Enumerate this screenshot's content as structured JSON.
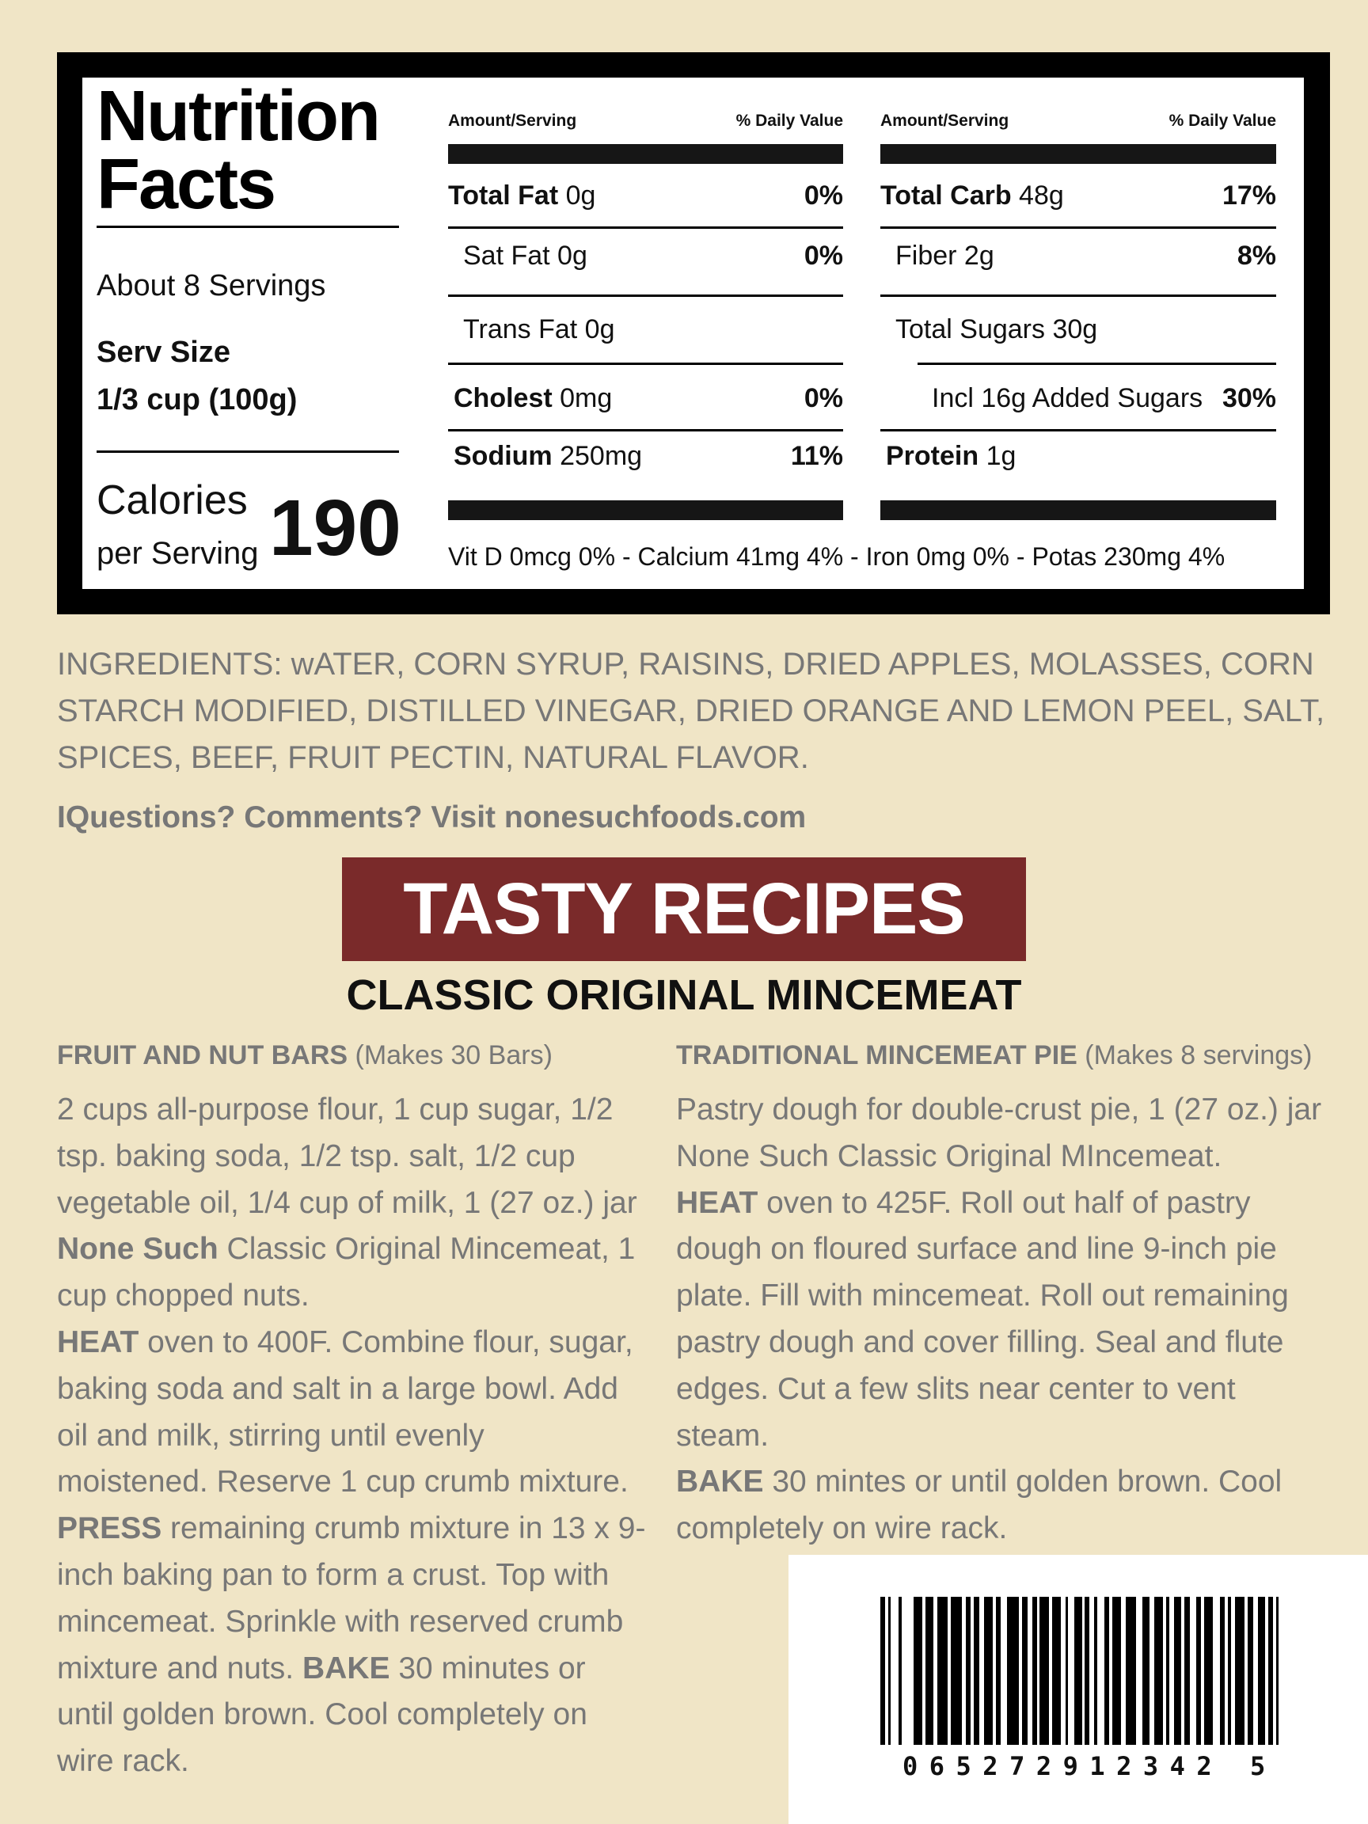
{
  "nutrition": {
    "title_line1": "Nutrition",
    "title_line2": "Facts",
    "servings": "About 8 Servings",
    "serv_size_label": "Serv Size",
    "serv_size_value": "1/3 cup (100g)",
    "calories_label": "Calories",
    "calories_sub": "per Serving",
    "calories_value": "190",
    "col_header_amount": "Amount/Serving",
    "col_header_dv": "% Daily Value",
    "left_rows": [
      {
        "bold": "Total Fat",
        "amount": " 0g",
        "dv": "0%"
      },
      {
        "bold": "",
        "amount": "Sat Fat 0g",
        "dv": "0%"
      },
      {
        "bold": "",
        "amount": "Trans Fat 0g",
        "dv": ""
      },
      {
        "bold": "Cholest",
        "amount": " 0mg",
        "dv": "0%"
      },
      {
        "bold": "Sodium",
        "amount": " 250mg",
        "dv": "11%"
      }
    ],
    "right_rows": [
      {
        "bold": "Total Carb",
        "amount": " 48g",
        "dv": "17%"
      },
      {
        "bold": "",
        "amount": "Fiber 2g",
        "dv": "8%"
      },
      {
        "bold": "",
        "amount": "Total Sugars 30g",
        "dv": ""
      },
      {
        "bold": "",
        "amount": "Incl 16g Added Sugars",
        "dv": "30%"
      },
      {
        "bold": "Protein",
        "amount": " 1g",
        "dv": ""
      }
    ],
    "micronutrients": "Vit D 0mcg 0% - Calcium 41mg 4% - Iron 0mg 0% - Potas 230mg 4%"
  },
  "ingredients": {
    "label": "INGREDIENTS:",
    "lines": [
      " wATER, CORN SYRUP, RAISINS, DRIED APPLES, MOLASSES, CORN",
      "STARCH MODIFIED, DISTILLED VINEGAR, DRIED ORANGE AND LEMON PEEL, SALT,",
      "SPICES, BEEF, FRUIT PECTIN, NATURAL FLAVOR."
    ]
  },
  "contact": "IQuestions? Comments? Visit nonesuchfoods.com",
  "banner": {
    "title": "TASTY RECIPES",
    "color": "#7a2a2a"
  },
  "subtitle": "CLASSIC ORIGINAL MINCEMEAT",
  "recipes": [
    {
      "title": "FRUIT AND NUT BARS",
      "yield": " (Makes 30 Bars)",
      "lines": [
        [
          {
            "t": "2 cups all-purpose flour, 1 cup sugar, 1/2"
          }
        ],
        [
          {
            "t": "tsp. baking soda, 1/2 tsp. salt, 1/2 cup"
          }
        ],
        [
          {
            "t": "vegetable oil, 1/4 cup of milk, 1 (27 oz.) jar"
          }
        ],
        [
          {
            "b": "None Such"
          },
          {
            "t": " Classic Original Mincemeat, 1"
          }
        ],
        [
          {
            "t": "cup chopped nuts."
          }
        ],
        [
          {
            "b": "HEAT"
          },
          {
            "t": " oven to 400F. Combine flour, sugar,"
          }
        ],
        [
          {
            "t": "baking soda and salt in a large bowl. Add"
          }
        ],
        [
          {
            "t": "oil and milk, stirring until evenly"
          }
        ],
        [
          {
            "t": "moistened. Reserve 1 cup crumb mixture."
          }
        ],
        [
          {
            "b": "PRESS"
          },
          {
            "t": " remaining crumb mixture in 13 x 9-"
          }
        ],
        [
          {
            "t": "inch baking pan to form a crust. Top with"
          }
        ],
        [
          {
            "t": "mincemeat. Sprinkle with reserved crumb"
          }
        ],
        [
          {
            "t": "mixture and nuts. "
          },
          {
            "b": "BAKE"
          },
          {
            "t": " 30 minutes or"
          }
        ],
        [
          {
            "t": "until golden brown. Cool completely on"
          }
        ],
        [
          {
            "t": "wire rack."
          }
        ]
      ]
    },
    {
      "title": "TRADITIONAL MINCEMEAT PIE",
      "yield": " (Makes 8 servings)",
      "lines": [
        [
          {
            "t": "Pastry dough for double-crust pie, 1 (27 oz.) jar"
          }
        ],
        [
          {
            "t": "None Such Classic Original MIncemeat."
          }
        ],
        [
          {
            "b": "HEAT"
          },
          {
            "t": " oven to 425F. Roll out half of pastry"
          }
        ],
        [
          {
            "t": "dough on floured surface and line 9-inch pie"
          }
        ],
        [
          {
            "t": "plate. Fill with mincemeat. Roll out remaining"
          }
        ],
        [
          {
            "t": "pastry dough and cover filling. Seal and flute"
          }
        ],
        [
          {
            "t": "edges. Cut a few slits near center to vent"
          }
        ],
        [
          {
            "t": "steam."
          }
        ],
        [
          {
            "b": "BAKE"
          },
          {
            "t": " 30 mintes or until golden brown. Cool"
          }
        ],
        [
          {
            "t": "completely on wire rack."
          }
        ]
      ]
    }
  ],
  "barcode": {
    "digits": "065272912342 5"
  }
}
